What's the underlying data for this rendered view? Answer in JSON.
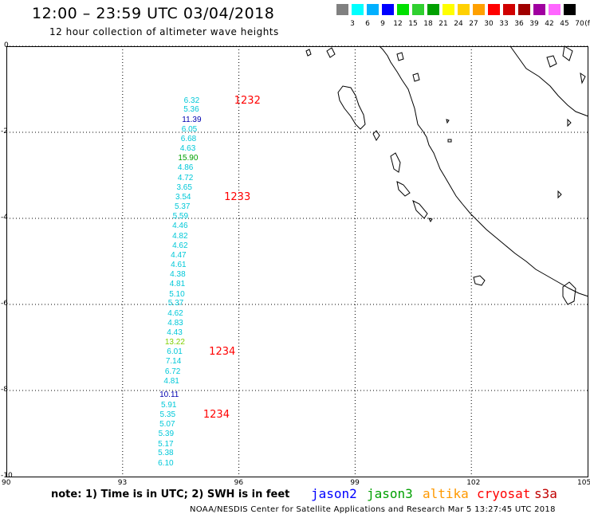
{
  "header": {
    "title": "12:00 – 23:59 UTC 03/04/2018",
    "subtitle": "12 hour collection of altimeter wave heights"
  },
  "legend": {
    "unit_label": "(ft)",
    "bins": [
      {
        "label": "3",
        "color": "#808080"
      },
      {
        "label": "6",
        "color": "#00ffff"
      },
      {
        "label": "9",
        "color": "#00b0ff"
      },
      {
        "label": "12",
        "color": "#0000ff"
      },
      {
        "label": "15",
        "color": "#00e000"
      },
      {
        "label": "18",
        "color": "#30d030"
      },
      {
        "label": "21",
        "color": "#00a000"
      },
      {
        "label": "24",
        "color": "#ffff00"
      },
      {
        "label": "27",
        "color": "#ffd000"
      },
      {
        "label": "30",
        "color": "#ffa000"
      },
      {
        "label": "33",
        "color": "#ff0000"
      },
      {
        "label": "36",
        "color": "#d00000"
      },
      {
        "label": "39",
        "color": "#a00000"
      },
      {
        "label": "42",
        "color": "#a000a0"
      },
      {
        "label": "45",
        "color": "#ff66ff"
      },
      {
        "label": "70",
        "color": "#000000"
      }
    ]
  },
  "axes": {
    "y_labels": [
      "0",
      "-2",
      "-4",
      "-6",
      "-8",
      "-10"
    ],
    "x_labels": [
      "90",
      "93",
      "96",
      "99",
      "102",
      "105"
    ]
  },
  "observations": [
    {
      "swh": "6.32",
      "lon": 94.87,
      "lat": -1.27,
      "color": "#00c8d8"
    },
    {
      "swh": "5.36",
      "lon": 94.86,
      "lat": -1.49,
      "color": "#00c8d8"
    },
    {
      "swh": "11.39",
      "lon": 94.82,
      "lat": -1.72,
      "color": "#0000b0"
    },
    {
      "swh": "6.05",
      "lon": 94.81,
      "lat": -1.94,
      "color": "#00c8d8"
    },
    {
      "swh": "6.68",
      "lon": 94.79,
      "lat": -2.17,
      "color": "#00c8d8"
    },
    {
      "swh": "4.63",
      "lon": 94.77,
      "lat": -2.39,
      "color": "#00c8d8"
    },
    {
      "swh": "15.90",
      "lon": 94.72,
      "lat": -2.62,
      "color": "#00a000"
    },
    {
      "swh": "4.86",
      "lon": 94.71,
      "lat": -2.84,
      "color": "#00c8d8"
    },
    {
      "swh": "4.72",
      "lon": 94.71,
      "lat": -3.07,
      "color": "#00c8d8"
    },
    {
      "swh": "3.65",
      "lon": 94.68,
      "lat": -3.29,
      "color": "#00c8d8"
    },
    {
      "swh": "3.54",
      "lon": 94.65,
      "lat": -3.52,
      "color": "#00c8d8"
    },
    {
      "swh": "5.37",
      "lon": 94.63,
      "lat": -3.74,
      "color": "#00c8d8"
    },
    {
      "swh": "5.59",
      "lon": 94.58,
      "lat": -3.97,
      "color": "#00c8d8"
    },
    {
      "swh": "4.46",
      "lon": 94.57,
      "lat": -4.19,
      "color": "#00c8d8"
    },
    {
      "swh": "4.82",
      "lon": 94.57,
      "lat": -4.42,
      "color": "#00c8d8"
    },
    {
      "swh": "4.62",
      "lon": 94.57,
      "lat": -4.64,
      "color": "#00c8d8"
    },
    {
      "swh": "4.47",
      "lon": 94.53,
      "lat": -4.87,
      "color": "#00c8d8"
    },
    {
      "swh": "4.61",
      "lon": 94.53,
      "lat": -5.09,
      "color": "#00c8d8"
    },
    {
      "swh": "4.38",
      "lon": 94.51,
      "lat": -5.32,
      "color": "#00c8d8"
    },
    {
      "swh": "4.81",
      "lon": 94.5,
      "lat": -5.54,
      "color": "#00c8d8"
    },
    {
      "swh": "5.10",
      "lon": 94.49,
      "lat": -5.77,
      "color": "#00c8d8"
    },
    {
      "swh": "5.37",
      "lon": 94.46,
      "lat": -5.99,
      "color": "#00c8d8"
    },
    {
      "swh": "4.62",
      "lon": 94.45,
      "lat": -6.22,
      "color": "#00c8d8"
    },
    {
      "swh": "4.83",
      "lon": 94.45,
      "lat": -6.44,
      "color": "#00c8d8"
    },
    {
      "swh": "4.43",
      "lon": 94.43,
      "lat": -6.67,
      "color": "#00c8d8"
    },
    {
      "swh": "13.22",
      "lon": 94.38,
      "lat": -6.89,
      "color": "#80d000"
    },
    {
      "swh": "6.01",
      "lon": 94.43,
      "lat": -7.12,
      "color": "#00c8d8"
    },
    {
      "swh": "7.14",
      "lon": 94.4,
      "lat": -7.34,
      "color": "#00c8d8"
    },
    {
      "swh": "6.72",
      "lon": 94.38,
      "lat": -7.57,
      "color": "#00c8d8"
    },
    {
      "swh": "4.81",
      "lon": 94.35,
      "lat": -7.79,
      "color": "#00c8d8"
    },
    {
      "swh": "10.11",
      "lon": 94.24,
      "lat": -8.12,
      "color": "#0000b0"
    },
    {
      "swh": "5.91",
      "lon": 94.28,
      "lat": -8.35,
      "color": "#00c8d8"
    },
    {
      "swh": "5.35",
      "lon": 94.25,
      "lat": -8.57,
      "color": "#00c8d8"
    },
    {
      "swh": "5.07",
      "lon": 94.24,
      "lat": -8.8,
      "color": "#00c8d8"
    },
    {
      "swh": "5.39",
      "lon": 94.21,
      "lat": -9.02,
      "color": "#00c8d8"
    },
    {
      "swh": "5.17",
      "lon": 94.2,
      "lat": -9.25,
      "color": "#00c8d8"
    },
    {
      "swh": "5.38",
      "lon": 94.2,
      "lat": -9.47,
      "color": "#00c8d8"
    },
    {
      "swh": "6.10",
      "lon": 94.2,
      "lat": -9.7,
      "color": "#00c8d8"
    }
  ],
  "pass_labels": [
    {
      "text": "1232",
      "lon": 95.88,
      "lat": -1.27
    },
    {
      "text": "1233",
      "lon": 95.62,
      "lat": -3.52
    },
    {
      "text": "1234",
      "lon": 95.23,
      "lat": -7.12
    },
    {
      "text": "1234",
      "lon": 95.08,
      "lat": -8.57
    }
  ],
  "footer": {
    "note": "note: 1) Time is in UTC; 2) SWH is in feet",
    "satellites": [
      {
        "name": "jason2",
        "color": "#0000ff"
      },
      {
        "name": "jason3",
        "color": "#00a000"
      },
      {
        "name": "altika",
        "color": "#ff9900"
      },
      {
        "name": "cryosat",
        "color": "#ff0000"
      },
      {
        "name": "s3a",
        "color": "#c00000"
      }
    ],
    "credit": "NOAA/NESDIS Center for Satellite Applications and Research   Mar  5 13:27:45 UTC 2018"
  }
}
